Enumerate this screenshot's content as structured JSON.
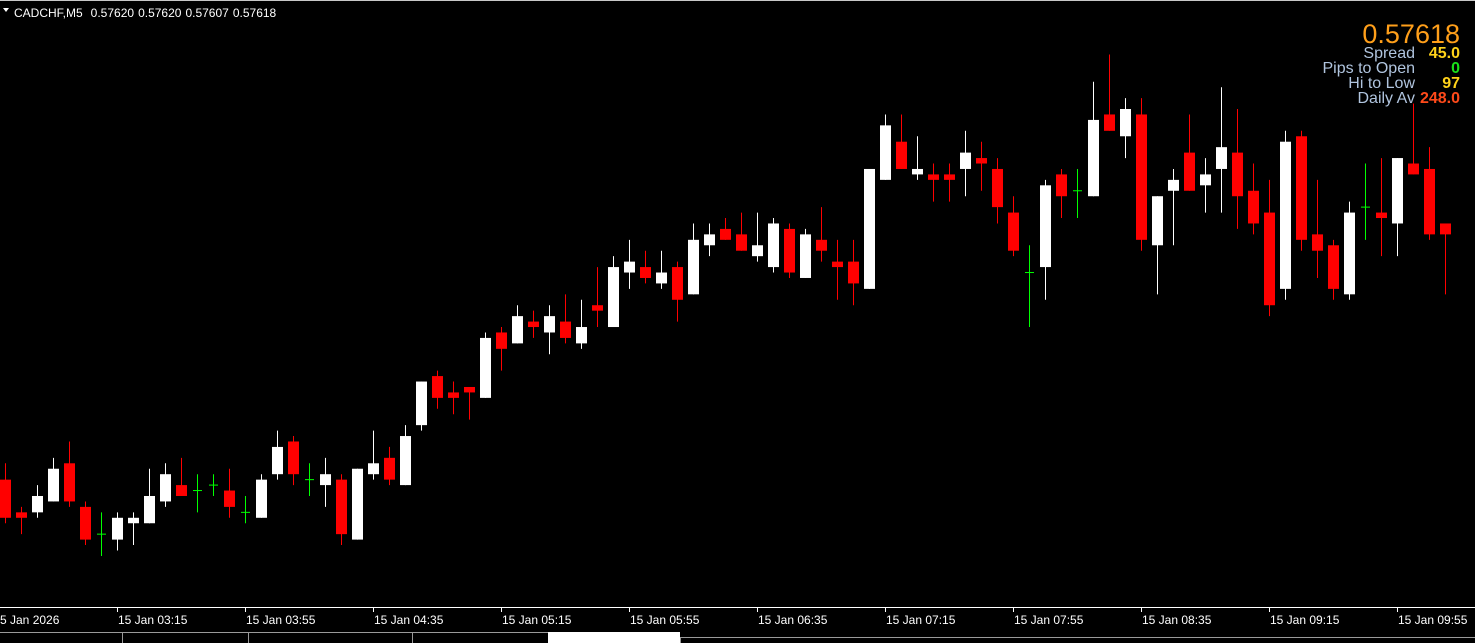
{
  "chart_data": {
    "type": "candlestick",
    "title": "CADCHF,M5",
    "header_values": [
      "0.57620",
      "0.57620",
      "0.57607",
      "0.57618"
    ],
    "price_label": "0.57618",
    "price_color": "#ff9f1a",
    "info": [
      {
        "label": "Spread",
        "value": "45.0",
        "color": "#ffd21a"
      },
      {
        "label": "Pips to Open",
        "value": "0",
        "color": "#1ae01a"
      },
      {
        "label": "Hi to Low",
        "value": "97",
        "color": "#ffd21a"
      },
      {
        "label": "Daily Av",
        "value": "248.0",
        "color": "#ff4a1a"
      }
    ],
    "left_edge_label": "5 Jan 2026",
    "categories": [
      null,
      null,
      null,
      null,
      null,
      null,
      null,
      "15 Jan 03:15",
      null,
      null,
      null,
      null,
      null,
      null,
      null,
      "15 Jan 03:55",
      null,
      null,
      null,
      null,
      null,
      null,
      null,
      "15 Jan 04:35",
      null,
      null,
      null,
      null,
      null,
      null,
      null,
      "15 Jan 05:15",
      null,
      null,
      null,
      null,
      null,
      null,
      null,
      "15 Jan 05:55",
      null,
      null,
      null,
      null,
      null,
      null,
      null,
      "15 Jan 06:35",
      null,
      null,
      null,
      null,
      null,
      null,
      null,
      "15 Jan 07:15",
      null,
      null,
      null,
      null,
      null,
      null,
      null,
      "15 Jan 07:55",
      null,
      null,
      null,
      null,
      null,
      null,
      null,
      "15 Jan 08:35",
      null,
      null,
      null,
      null,
      null,
      null,
      null,
      "15 Jan 09:15",
      null,
      null,
      null,
      null,
      null,
      null,
      null,
      "15 Jan 09:55",
      null,
      null,
      null
    ],
    "open": [
      0.57573,
      0.57567,
      0.57567,
      0.57569,
      0.57576,
      0.57568,
      0.57563,
      0.57562,
      0.57565,
      0.57565,
      0.57569,
      0.57572,
      0.57571,
      0.57572,
      0.57571,
      0.57567,
      0.57566,
      0.57574,
      0.5758,
      0.57573,
      0.57572,
      0.57573,
      0.57562,
      0.57574,
      0.57577,
      0.57572,
      0.57583,
      0.57592,
      0.57589,
      0.5759,
      0.57588,
      0.576,
      0.57598,
      0.57602,
      0.576,
      0.57602,
      0.57598,
      0.57605,
      0.57601,
      0.57611,
      0.57612,
      0.57609,
      0.57612,
      0.57607,
      0.57616,
      0.57619,
      0.57618,
      0.57614,
      0.57612,
      0.57619,
      0.5761,
      0.57617,
      0.57613,
      0.57613,
      0.57608,
      0.57628,
      0.57635,
      0.57629,
      0.57629,
      0.57629,
      0.5763,
      0.57632,
      0.5763,
      0.57622,
      0.57611,
      0.57612,
      0.57629,
      0.57626,
      0.57625,
      0.5764,
      0.57636,
      0.5764,
      0.57616,
      0.57626,
      0.57633,
      0.57627,
      0.5763,
      0.57633,
      0.57626,
      0.57622,
      0.57608,
      0.57636,
      0.57618,
      0.57616,
      0.57607,
      0.57623,
      0.57622,
      0.5762,
      0.57631,
      0.5763,
      0.5762
    ],
    "high": [
      0.57576,
      0.57568,
      0.57572,
      0.57577,
      0.5758,
      0.57569,
      0.57567,
      0.57567,
      0.57567,
      0.57575,
      0.57576,
      0.57577,
      0.57574,
      0.57574,
      0.57575,
      0.5757,
      0.57574,
      0.57582,
      0.57581,
      0.57576,
      0.57577,
      0.57574,
      0.57575,
      0.57582,
      0.57579,
      0.57583,
      0.57591,
      0.57593,
      0.57591,
      0.5759,
      0.576,
      0.57601,
      0.57605,
      0.57604,
      0.57605,
      0.57607,
      0.57606,
      0.57612,
      0.57614,
      0.57617,
      0.57615,
      0.57615,
      0.57613,
      0.5762,
      0.5762,
      0.57621,
      0.57622,
      0.57622,
      0.57621,
      0.5762,
      0.57619,
      0.57623,
      0.57617,
      0.57617,
      0.5763,
      0.5764,
      0.5764,
      0.57636,
      0.57631,
      0.57631,
      0.57637,
      0.57635,
      0.57632,
      0.57625,
      0.57616,
      0.57628,
      0.5763,
      0.5763,
      0.57646,
      0.57651,
      0.57643,
      0.57643,
      0.57625,
      0.5763,
      0.5764,
      0.57632,
      0.57645,
      0.57641,
      0.57631,
      0.57628,
      0.57637,
      0.57637,
      0.57628,
      0.57617,
      0.57624,
      0.57631,
      0.57632,
      0.57632,
      0.57642,
      0.57634,
      0.5762
    ],
    "low": [
      0.57565,
      0.57563,
      0.57566,
      0.57569,
      0.57568,
      0.57561,
      0.57559,
      0.5756,
      0.57561,
      0.57565,
      0.57568,
      0.5757,
      0.57567,
      0.5757,
      0.57566,
      0.57565,
      0.57566,
      0.57573,
      0.57572,
      0.5757,
      0.57568,
      0.57561,
      0.57562,
      0.57573,
      0.57572,
      0.57572,
      0.57582,
      0.57586,
      0.57585,
      0.57584,
      0.57588,
      0.57593,
      0.57598,
      0.57599,
      0.57596,
      0.57598,
      0.57597,
      0.57601,
      0.57601,
      0.57608,
      0.57609,
      0.57608,
      0.57602,
      0.57607,
      0.57614,
      0.57617,
      0.57615,
      0.57613,
      0.57611,
      0.5761,
      0.5761,
      0.57613,
      0.57606,
      0.57605,
      0.57608,
      0.57628,
      0.5763,
      0.57628,
      0.57624,
      0.57624,
      0.57625,
      0.57626,
      0.5762,
      0.57614,
      0.57601,
      0.57606,
      0.57621,
      0.57621,
      0.57625,
      0.57637,
      0.57632,
      0.57615,
      0.57607,
      0.57616,
      0.57626,
      0.57622,
      0.57622,
      0.57619,
      0.57618,
      0.57603,
      0.57606,
      0.57615,
      0.5761,
      0.57606,
      0.57606,
      0.57617,
      0.57614,
      0.57614,
      0.57629,
      0.57617,
      0.57607
    ],
    "close": [
      0.57566,
      0.57566,
      0.5757,
      0.57575,
      0.57569,
      0.57562,
      0.57563,
      0.57566,
      0.57566,
      0.5757,
      0.57574,
      0.5757,
      0.57571,
      0.57572,
      0.57568,
      0.57567,
      0.57573,
      0.57579,
      0.57574,
      0.57573,
      0.57574,
      0.57563,
      0.57575,
      0.57576,
      0.57573,
      0.57581,
      0.57591,
      0.57588,
      0.57588,
      0.57589,
      0.57599,
      0.57597,
      0.57603,
      0.57601,
      0.57603,
      0.57599,
      0.57601,
      0.57604,
      0.57612,
      0.57613,
      0.5761,
      0.57611,
      0.57606,
      0.57617,
      0.57618,
      0.57617,
      0.57615,
      0.57616,
      0.5762,
      0.57611,
      0.57618,
      0.57615,
      0.57612,
      0.57609,
      0.5763,
      0.57638,
      0.5763,
      0.5763,
      0.57628,
      0.57628,
      0.57633,
      0.57631,
      0.57623,
      0.57615,
      0.57611,
      0.57627,
      0.57625,
      0.57626,
      0.57639,
      0.57637,
      0.57641,
      0.57617,
      0.57625,
      0.57628,
      0.57626,
      0.57629,
      0.57634,
      0.57625,
      0.5762,
      0.57605,
      0.57635,
      0.57617,
      0.57615,
      0.57608,
      0.57622,
      0.57623,
      0.57621,
      0.57632,
      0.57629,
      0.57618,
      0.57618
    ],
    "up_color": "#ffffff",
    "down_color": "#ff0000",
    "doji_color": "#00ff00",
    "ylim": [
      0.5755,
      0.57661
    ]
  }
}
